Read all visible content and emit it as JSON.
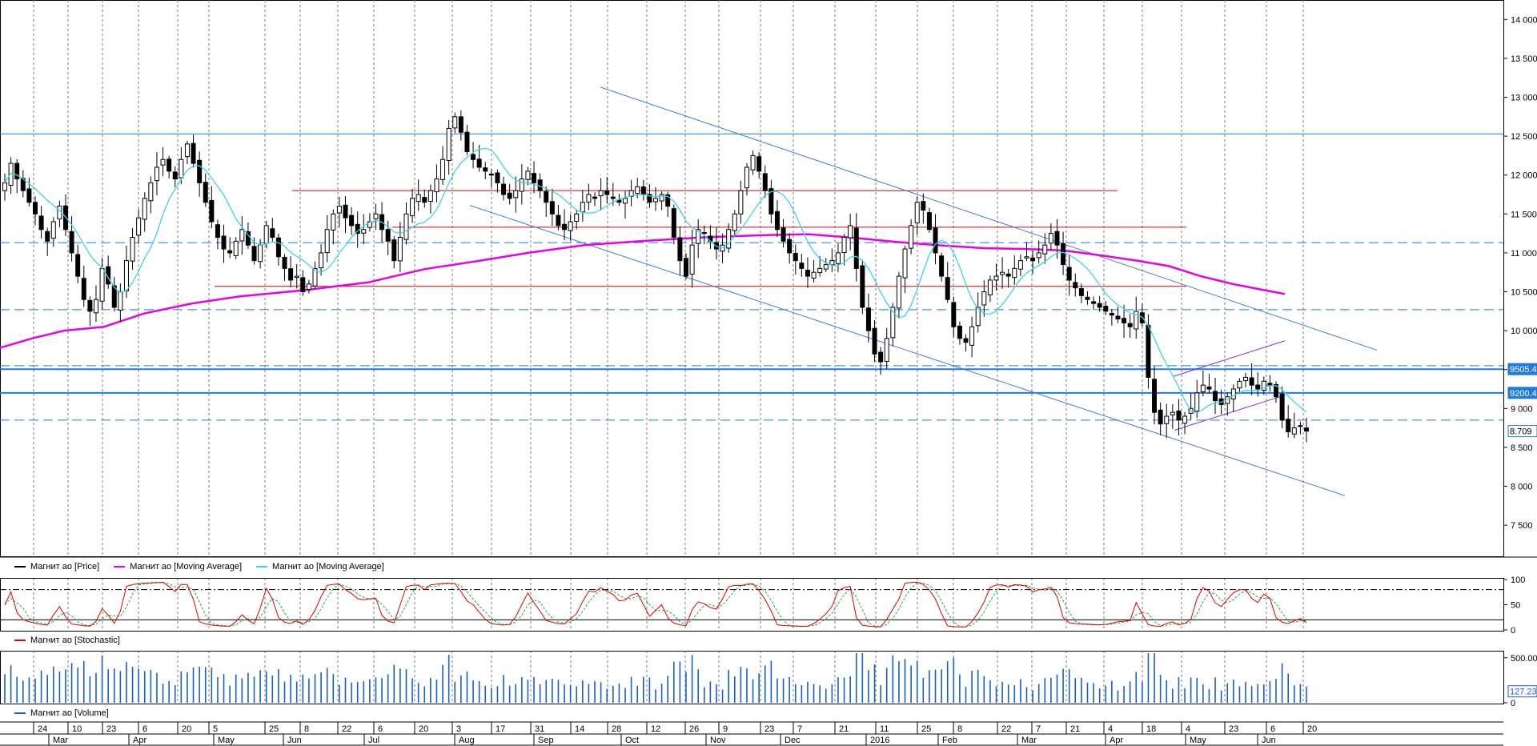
{
  "colors": {
    "price": "#000000",
    "ma_long": "#e800e8",
    "ma_short": "#3cd4e8",
    "channel": "#3d7fd9",
    "resistance": "#e00000",
    "hline": "#1f7ae0",
    "stochastic": "#e00000",
    "stoch_signal": "#22aa44",
    "volume": "#1a5ec8",
    "triangle": "#8a2be2"
  },
  "price_panel": {
    "yaxis": {
      "min": 7100,
      "max": 14250,
      "ticks": [
        "14 000",
        "13 500",
        "13 000",
        "12 500",
        "12 000",
        "11 500",
        "11 000",
        "10 500",
        "10 000",
        "9 500",
        "9 000",
        "8 500",
        "8 000",
        "7 500"
      ],
      "tick_values": [
        14000,
        13500,
        13000,
        12500,
        12000,
        11500,
        11000,
        10500,
        10000,
        9500,
        9000,
        8500,
        8000,
        7500
      ]
    },
    "badges": [
      {
        "text": "9505.4",
        "value": 9505.4,
        "style": "filled"
      },
      {
        "text": "9200.4",
        "value": 9200.4,
        "style": "filled"
      },
      {
        "text": "8.709",
        "value": 8709,
        "style": "outline"
      }
    ],
    "horizontal_lines": [
      {
        "value": 12530,
        "dash": false
      },
      {
        "value": 11130,
        "dash": true
      },
      {
        "value": 10270,
        "dash": true
      },
      {
        "value": 9550,
        "dash": true
      },
      {
        "value": 9505.4,
        "dash": false,
        "thick": true
      },
      {
        "value": 9200.4,
        "dash": false,
        "thick": true
      },
      {
        "value": 8850,
        "dash": true
      }
    ],
    "resistance_lines": [
      {
        "value": 11800,
        "x_start": 365,
        "x_end": 1396
      },
      {
        "value": 11330,
        "x_start": 490,
        "x_end": 1482
      },
      {
        "value": 10570,
        "x_start": 268,
        "x_end": 1482
      }
    ],
    "channel_lines": [
      {
        "from": [
          750,
          13130
        ],
        "to": [
          1720,
          9750
        ]
      },
      {
        "from": [
          587,
          11610
        ],
        "to": [
          1680,
          7880
        ]
      }
    ],
    "triangle_lines": [
      {
        "from": [
          1465,
          9410
        ],
        "to": [
          1605,
          9870
        ]
      },
      {
        "from": [
          1467,
          8720
        ],
        "to": [
          1605,
          9170
        ]
      }
    ],
    "legend": [
      {
        "label": "Магнит ао [Price]",
        "color": "#000000"
      },
      {
        "label": "Магнит ао [Moving Average]",
        "color": "#e800e8"
      },
      {
        "label": "Магнит ао [Moving Average]",
        "color": "#3cd4e8"
      }
    ]
  },
  "chart_data": {
    "type": "line",
    "series_note": "",
    "closes": [
      11900,
      12150,
      11950,
      11800,
      11650,
      11500,
      11300,
      11150,
      11400,
      11600,
      11300,
      11000,
      10700,
      10400,
      10250,
      10400,
      10800,
      10600,
      10300,
      10500,
      10900,
      11200,
      11450,
      11700,
      11900,
      12100,
      12200,
      12050,
      11950,
      12200,
      12400,
      12150,
      11900,
      11650,
      11400,
      11200,
      11050,
      11000,
      11150,
      11300,
      11100,
      10900,
      11100,
      11350,
      11200,
      10950,
      10800,
      10650,
      10700,
      10500,
      10600,
      10800,
      11000,
      11300,
      11500,
      11600,
      11450,
      11350,
      11250,
      11300,
      11400,
      11500,
      11300,
      11150,
      10900,
      11200,
      11500,
      11700,
      11750,
      11650,
      11800,
      11950,
      12200,
      12600,
      12750,
      12550,
      12300,
      12200,
      12100,
      12050,
      12000,
      11900,
      11750,
      11700,
      11800,
      11950,
      12050,
      11900,
      11800,
      11650,
      11500,
      11350,
      11300,
      11400,
      11500,
      11650,
      11750,
      11700,
      11800,
      11750,
      11700,
      11650,
      11700,
      11800,
      11850,
      11750,
      11650,
      11700,
      11750,
      11600,
      11200,
      10900,
      10700,
      11100,
      11300,
      11250,
      11150,
      11050,
      11100,
      11300,
      11500,
      11800,
      12100,
      12250,
      12050,
      11800,
      11500,
      11300,
      11150,
      11000,
      10900,
      10800,
      10700,
      10750,
      10800,
      10850,
      10900,
      11000,
      11200,
      11350,
      10800,
      10300,
      10000,
      9700,
      9600,
      9900,
      10300,
      10700,
      11050,
      11350,
      11650,
      11550,
      11300,
      11000,
      10700,
      10400,
      10050,
      9900,
      9850,
      10050,
      10300,
      10500,
      10650,
      10700,
      10750,
      10700,
      10800,
      10900,
      10950,
      10900,
      11000,
      11100,
      11250,
      11100,
      10850,
      10650,
      10550,
      10450,
      10400,
      10350,
      10300,
      10250,
      10200,
      10150,
      10100,
      10050,
      10250,
      10100,
      9400,
      8950,
      8800,
      8900,
      8950,
      8850,
      8900,
      9000,
      9200,
      9300,
      9250,
      9100,
      9050,
      9150,
      9250,
      9350,
      9400,
      9300,
      9250,
      9350,
      9300,
      9150,
      8850,
      8700,
      8750,
      8780,
      8709
    ],
    "ma_long": [
      [
        0,
        9780
      ],
      [
        40,
        9900
      ],
      [
        80,
        10000
      ],
      [
        130,
        10050
      ],
      [
        180,
        10220
      ],
      [
        240,
        10350
      ],
      [
        300,
        10440
      ],
      [
        380,
        10520
      ],
      [
        460,
        10620
      ],
      [
        530,
        10790
      ],
      [
        600,
        10900
      ],
      [
        660,
        11000
      ],
      [
        730,
        11100
      ],
      [
        800,
        11150
      ],
      [
        880,
        11200
      ],
      [
        960,
        11230
      ],
      [
        1010,
        11240
      ],
      [
        1060,
        11200
      ],
      [
        1120,
        11140
      ],
      [
        1170,
        11100
      ],
      [
        1230,
        11060
      ],
      [
        1280,
        11050
      ],
      [
        1330,
        11030
      ],
      [
        1380,
        10960
      ],
      [
        1420,
        10900
      ],
      [
        1460,
        10830
      ],
      [
        1500,
        10700
      ],
      [
        1540,
        10600
      ],
      [
        1580,
        10520
      ],
      [
        1605,
        10470
      ]
    ],
    "ma_short_note": "",
    "stochastic": {
      "ticks": [
        "100",
        "50",
        "0"
      ],
      "tick_values": [
        100,
        50,
        0
      ],
      "upper": 80,
      "lower": 20,
      "legend": "Магнит ао [Stochastic]"
    },
    "volume": {
      "ticks": [
        "500.00",
        "0"
      ],
      "tick_values": [
        500,
        0
      ],
      "last": "127.23",
      "legend": "Магнит ао [Volume]"
    }
  },
  "xaxis": {
    "days": [
      {
        "label": "24",
        "x": 52
      },
      {
        "label": "10",
        "x": 95
      },
      {
        "label": "23",
        "x": 138
      },
      {
        "label": "6",
        "x": 183
      },
      {
        "label": "20",
        "x": 232
      },
      {
        "label": "5",
        "x": 271
      },
      {
        "label": "25",
        "x": 341
      },
      {
        "label": "8",
        "x": 385
      },
      {
        "label": "22",
        "x": 432
      },
      {
        "label": "6",
        "x": 477
      },
      {
        "label": "20",
        "x": 528
      },
      {
        "label": "3",
        "x": 575
      },
      {
        "label": "17",
        "x": 624
      },
      {
        "label": "31",
        "x": 673
      },
      {
        "label": "14",
        "x": 723
      },
      {
        "label": "28",
        "x": 769
      },
      {
        "label": "12",
        "x": 818
      },
      {
        "label": "26",
        "x": 866
      },
      {
        "label": "9",
        "x": 908
      },
      {
        "label": "23",
        "x": 960
      },
      {
        "label": "7",
        "x": 1001
      },
      {
        "label": "21",
        "x": 1053
      },
      {
        "label": "11",
        "x": 1104
      },
      {
        "label": "25",
        "x": 1156
      },
      {
        "label": "8",
        "x": 1201
      },
      {
        "label": "22",
        "x": 1256
      },
      {
        "label": "7",
        "x": 1299
      },
      {
        "label": "21",
        "x": 1342
      },
      {
        "label": "4",
        "x": 1389
      },
      {
        "label": "18",
        "x": 1437
      },
      {
        "label": "4",
        "x": 1486
      },
      {
        "label": "23",
        "x": 1540
      },
      {
        "label": "6",
        "x": 1592
      },
      {
        "label": "20",
        "x": 1638
      }
    ],
    "months": [
      {
        "label": "Mar",
        "x": 66
      },
      {
        "label": "Apr",
        "x": 166
      },
      {
        "label": "May",
        "x": 272
      },
      {
        "label": "Jun",
        "x": 359
      },
      {
        "label": "Jul",
        "x": 460
      },
      {
        "label": "Aug",
        "x": 573
      },
      {
        "label": "Sep",
        "x": 672
      },
      {
        "label": "Oct",
        "x": 781
      },
      {
        "label": "Nov",
        "x": 887
      },
      {
        "label": "Dec",
        "x": 980
      },
      {
        "label": "2016",
        "x": 1087
      },
      {
        "label": "Feb",
        "x": 1177
      },
      {
        "label": "Mar",
        "x": 1276
      },
      {
        "label": "Apr",
        "x": 1386
      },
      {
        "label": "May",
        "x": 1486
      },
      {
        "label": "Jun",
        "x": 1576
      }
    ]
  }
}
